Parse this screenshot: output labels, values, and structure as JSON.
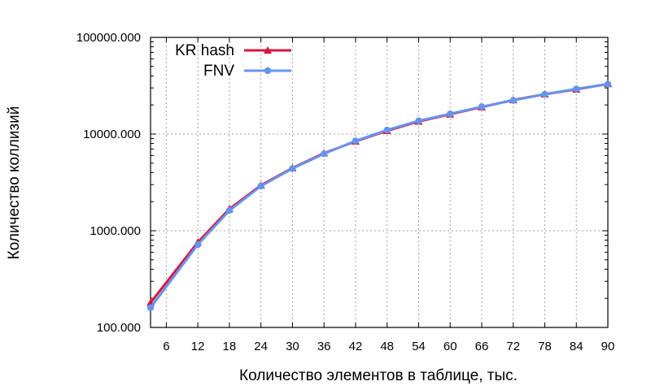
{
  "chart_data": {
    "type": "line",
    "x": [
      3,
      12,
      18,
      24,
      30,
      36,
      42,
      48,
      54,
      60,
      66,
      72,
      78,
      84,
      90
    ],
    "x_ticks": [
      6,
      12,
      18,
      24,
      30,
      36,
      42,
      48,
      54,
      60,
      66,
      72,
      78,
      84,
      90
    ],
    "x_tick_labels": [
      "6",
      "12",
      "18",
      "24",
      "30",
      "36",
      "42",
      "48",
      "54",
      "60",
      "66",
      "72",
      "78",
      "84",
      "90"
    ],
    "xlim": [
      3,
      90
    ],
    "y_scale": "log",
    "ylim": [
      100,
      100000
    ],
    "y_ticks": [
      100,
      1000,
      10000,
      100000
    ],
    "y_tick_labels": [
      "100.000",
      "1000.000",
      "10000.000",
      "100000.000"
    ],
    "xlabel": "Количество элементов в таблице, тыс.",
    "ylabel": "Количество коллизий",
    "grid": true,
    "legend_position": "top-left",
    "series": [
      {
        "name": "KR hash",
        "color": "#dc143c",
        "marker": "triangle",
        "values": [
          180,
          760,
          1680,
          2950,
          4450,
          6350,
          8400,
          10800,
          13500,
          16000,
          19000,
          22500,
          25800,
          29000,
          33000
        ]
      },
      {
        "name": "FNV",
        "color": "#6495ed",
        "marker": "circle",
        "values": [
          160,
          720,
          1620,
          2900,
          4400,
          6250,
          8500,
          11000,
          13700,
          16200,
          19200,
          22300,
          25800,
          29300,
          32800
        ]
      }
    ]
  }
}
